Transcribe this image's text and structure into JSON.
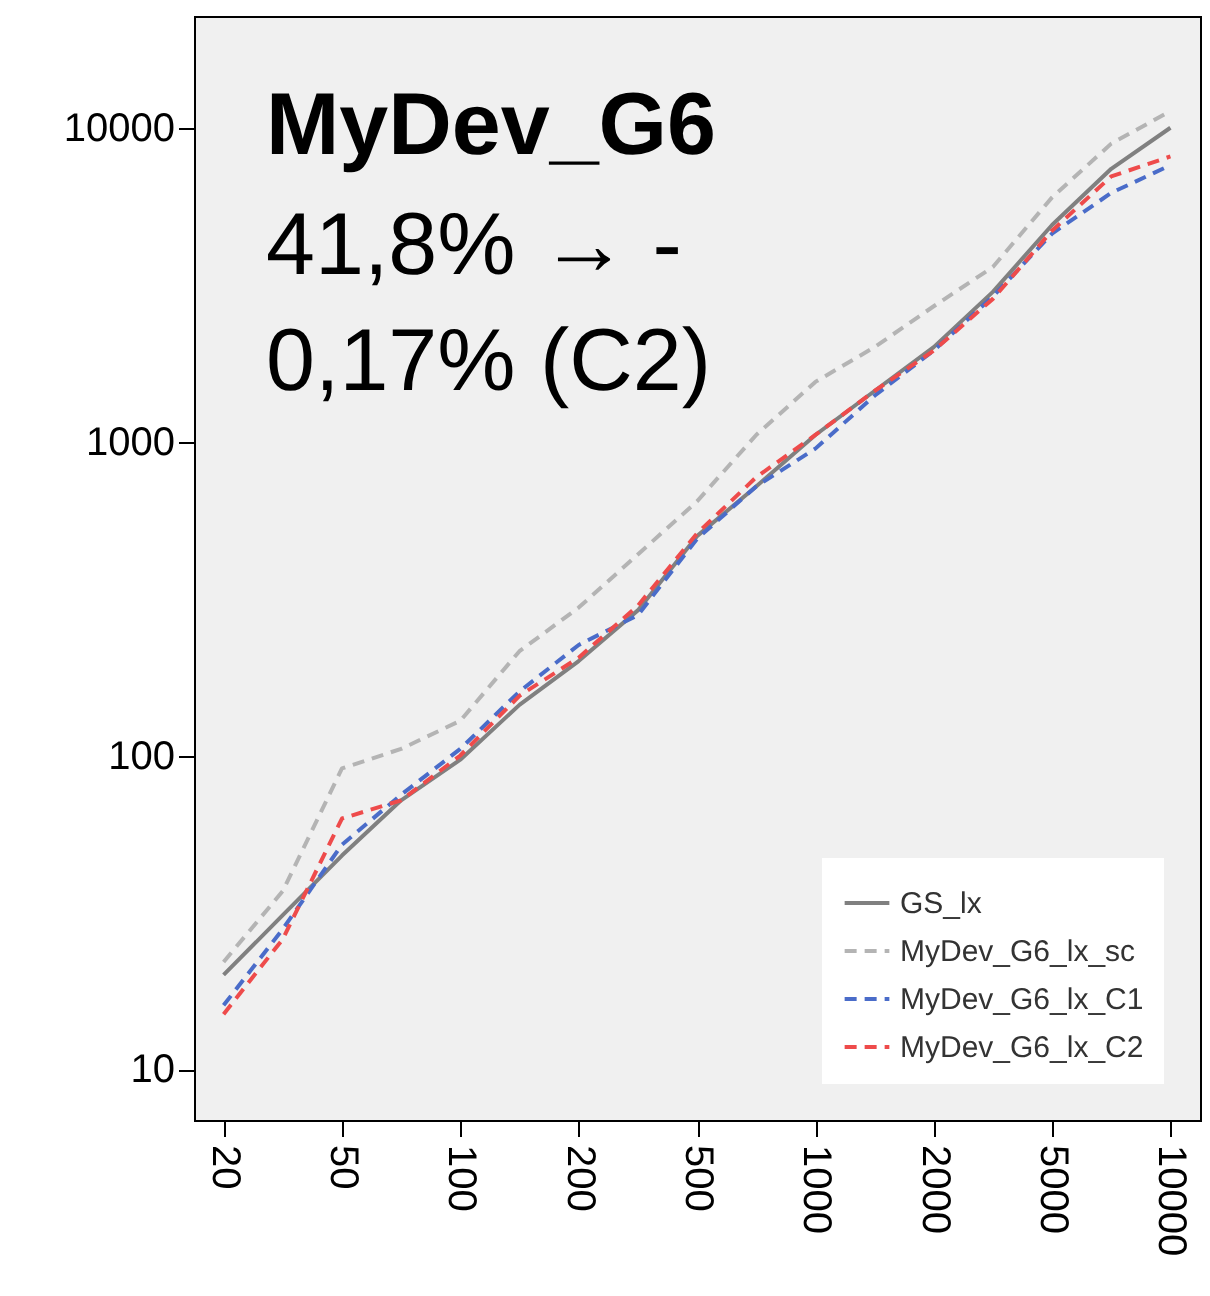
{
  "chart_data": {
    "type": "line",
    "title": "MyDev_G6",
    "annotations": [
      "41,8% → -",
      "0,17% (C2)"
    ],
    "categories": [
      "20",
      null,
      "50",
      null,
      "100",
      null,
      "200",
      null,
      "500",
      null,
      "1000",
      null,
      "2000",
      null,
      "5000",
      null,
      "10000"
    ],
    "series": [
      {
        "name": "GS_lx",
        "color": "#808080",
        "line_style": "solid",
        "values": [
          20,
          31,
          48,
          72,
          97,
          145,
          200,
          290,
          500,
          720,
          1050,
          1450,
          2000,
          3000,
          4900,
          7400,
          10000
        ]
      },
      {
        "name": "MyDev_G6_lx_sc",
        "color": "#b4b4b4",
        "line_style": "dashed",
        "values": [
          22,
          37,
          91,
          105,
          129,
          215,
          296,
          437,
          645,
          1050,
          1550,
          2000,
          2700,
          3600,
          6000,
          8900,
          11300
        ]
      },
      {
        "name": "MyDev_G6_lx_C1",
        "color": "#4a6cc9",
        "line_style": "dashed",
        "values": [
          16,
          28,
          52,
          75,
          105,
          160,
          225,
          280,
          490,
          720,
          950,
          1400,
          1950,
          2900,
          4600,
          6200,
          7600
        ]
      },
      {
        "name": "MyDev_G6_lx_C2",
        "color": "#ee4b4b",
        "line_style": "dashed",
        "values": [
          15,
          26,
          63,
          72,
          100,
          155,
          205,
          300,
          510,
          770,
          1050,
          1450,
          1950,
          2850,
          4700,
          7000,
          8100
        ]
      }
    ],
    "log": true,
    "ylim": [
      6.9,
      22700
    ],
    "yticks": [
      10,
      100,
      1000,
      10000
    ],
    "grid": false,
    "legend": "bottom right",
    "marker": "none"
  }
}
